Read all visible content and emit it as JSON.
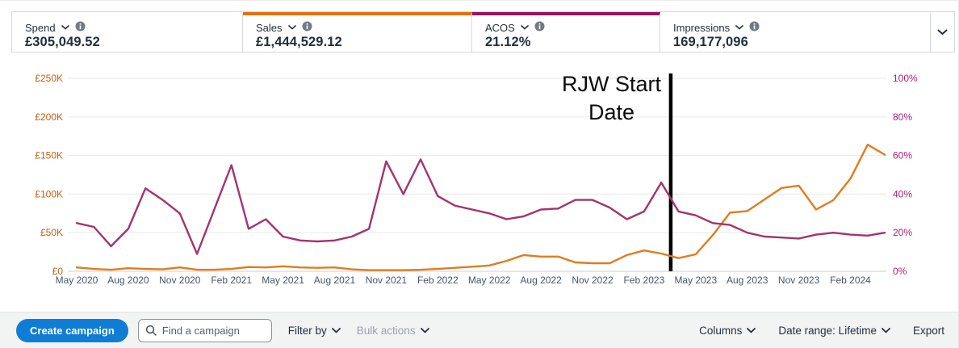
{
  "metrics_bar": {
    "cards": [
      {
        "label": "Spend",
        "value": "£305,049.52"
      },
      {
        "label": "Sales",
        "value": "£1,444,529.12"
      },
      {
        "label": "ACOS",
        "value": "21.12%"
      },
      {
        "label": "Impressions",
        "value": "169,177,096"
      }
    ]
  },
  "chart_data": {
    "type": "line",
    "x": [
      "May 2020",
      "Jun 2020",
      "Jul 2020",
      "Aug 2020",
      "Sep 2020",
      "Oct 2020",
      "Nov 2020",
      "Dec 2020",
      "Jan 2021",
      "Feb 2021",
      "Mar 2021",
      "Apr 2021",
      "May 2021",
      "Jun 2021",
      "Jul 2021",
      "Aug 2021",
      "Sep 2021",
      "Oct 2021",
      "Nov 2021",
      "Dec 2021",
      "Jan 2022",
      "Feb 2022",
      "Mar 2022",
      "Apr 2022",
      "May 2022",
      "Jun 2022",
      "Jul 2022",
      "Aug 2022",
      "Sep 2022",
      "Oct 2022",
      "Nov 2022",
      "Dec 2022",
      "Jan 2023",
      "Feb 2023",
      "Mar 2023",
      "Apr 2023",
      "May 2023",
      "Jun 2023",
      "Jul 2023",
      "Aug 2023",
      "Sep 2023",
      "Oct 2023",
      "Nov 2023",
      "Dec 2023",
      "Jan 2024",
      "Feb 2024",
      "Mar 2024",
      "Apr 2024"
    ],
    "x_tick_every": 3,
    "series": [
      {
        "name": "Sales",
        "axis": "left",
        "unit": "GBP",
        "color": "#e07c1d",
        "values": [
          5000,
          3000,
          2000,
          4000,
          3000,
          2500,
          5000,
          2000,
          2000,
          3000,
          5500,
          5000,
          6500,
          5000,
          4500,
          5000,
          2500,
          1500,
          1500,
          1500,
          2000,
          3000,
          4500,
          6000,
          7500,
          13500,
          21000,
          19000,
          19000,
          11500,
          10500,
          10500,
          21000,
          27000,
          23000,
          17000,
          22000,
          47000,
          76000,
          78000,
          93000,
          108000,
          111000,
          80000,
          92000,
          120000,
          164000,
          151000
        ]
      },
      {
        "name": "ACOS",
        "axis": "right",
        "unit": "%",
        "color": "#a4336e",
        "values": [
          25,
          23,
          13,
          22,
          43,
          37,
          30,
          9,
          32,
          55,
          22,
          27,
          18,
          16,
          15.5,
          16,
          18,
          22,
          57,
          40,
          58,
          39,
          34,
          32,
          30,
          27,
          28.5,
          32,
          32.5,
          37,
          37,
          33,
          27,
          31,
          46,
          31,
          29,
          25,
          24,
          20,
          18,
          17.5,
          17,
          19,
          20,
          19,
          18.5,
          20
        ]
      }
    ],
    "left_axis": {
      "labels": [
        "£0",
        "£50K",
        "£100K",
        "£150K",
        "£200K",
        "£250K"
      ],
      "min": 0,
      "max": 250000,
      "color": "#c45f10"
    },
    "right_axis": {
      "labels": [
        "0%",
        "20%",
        "40%",
        "60%",
        "80%",
        "100%"
      ],
      "min": 0,
      "max": 100,
      "color": "#b01e6e"
    },
    "x_axis_color": "#475569",
    "grid": true,
    "annotation": {
      "line1": "RJW Start",
      "line2": "Date",
      "label": "RJW Start Date",
      "x_index": 34.55
    }
  },
  "toolbar": {
    "create_campaign": "Create campaign",
    "search_placeholder": "Find a campaign",
    "filter_by": "Filter by",
    "bulk_actions": "Bulk actions",
    "columns": "Columns",
    "date_range": "Date range: Lifetime",
    "export": "Export"
  },
  "colors": {
    "accent_sales": "#e1720f",
    "accent_acos": "#9a1166",
    "line_sales": "#e07c1d",
    "line_acos": "#a4336e",
    "annotation_line": "#000000",
    "button_blue": "#107dd4"
  }
}
